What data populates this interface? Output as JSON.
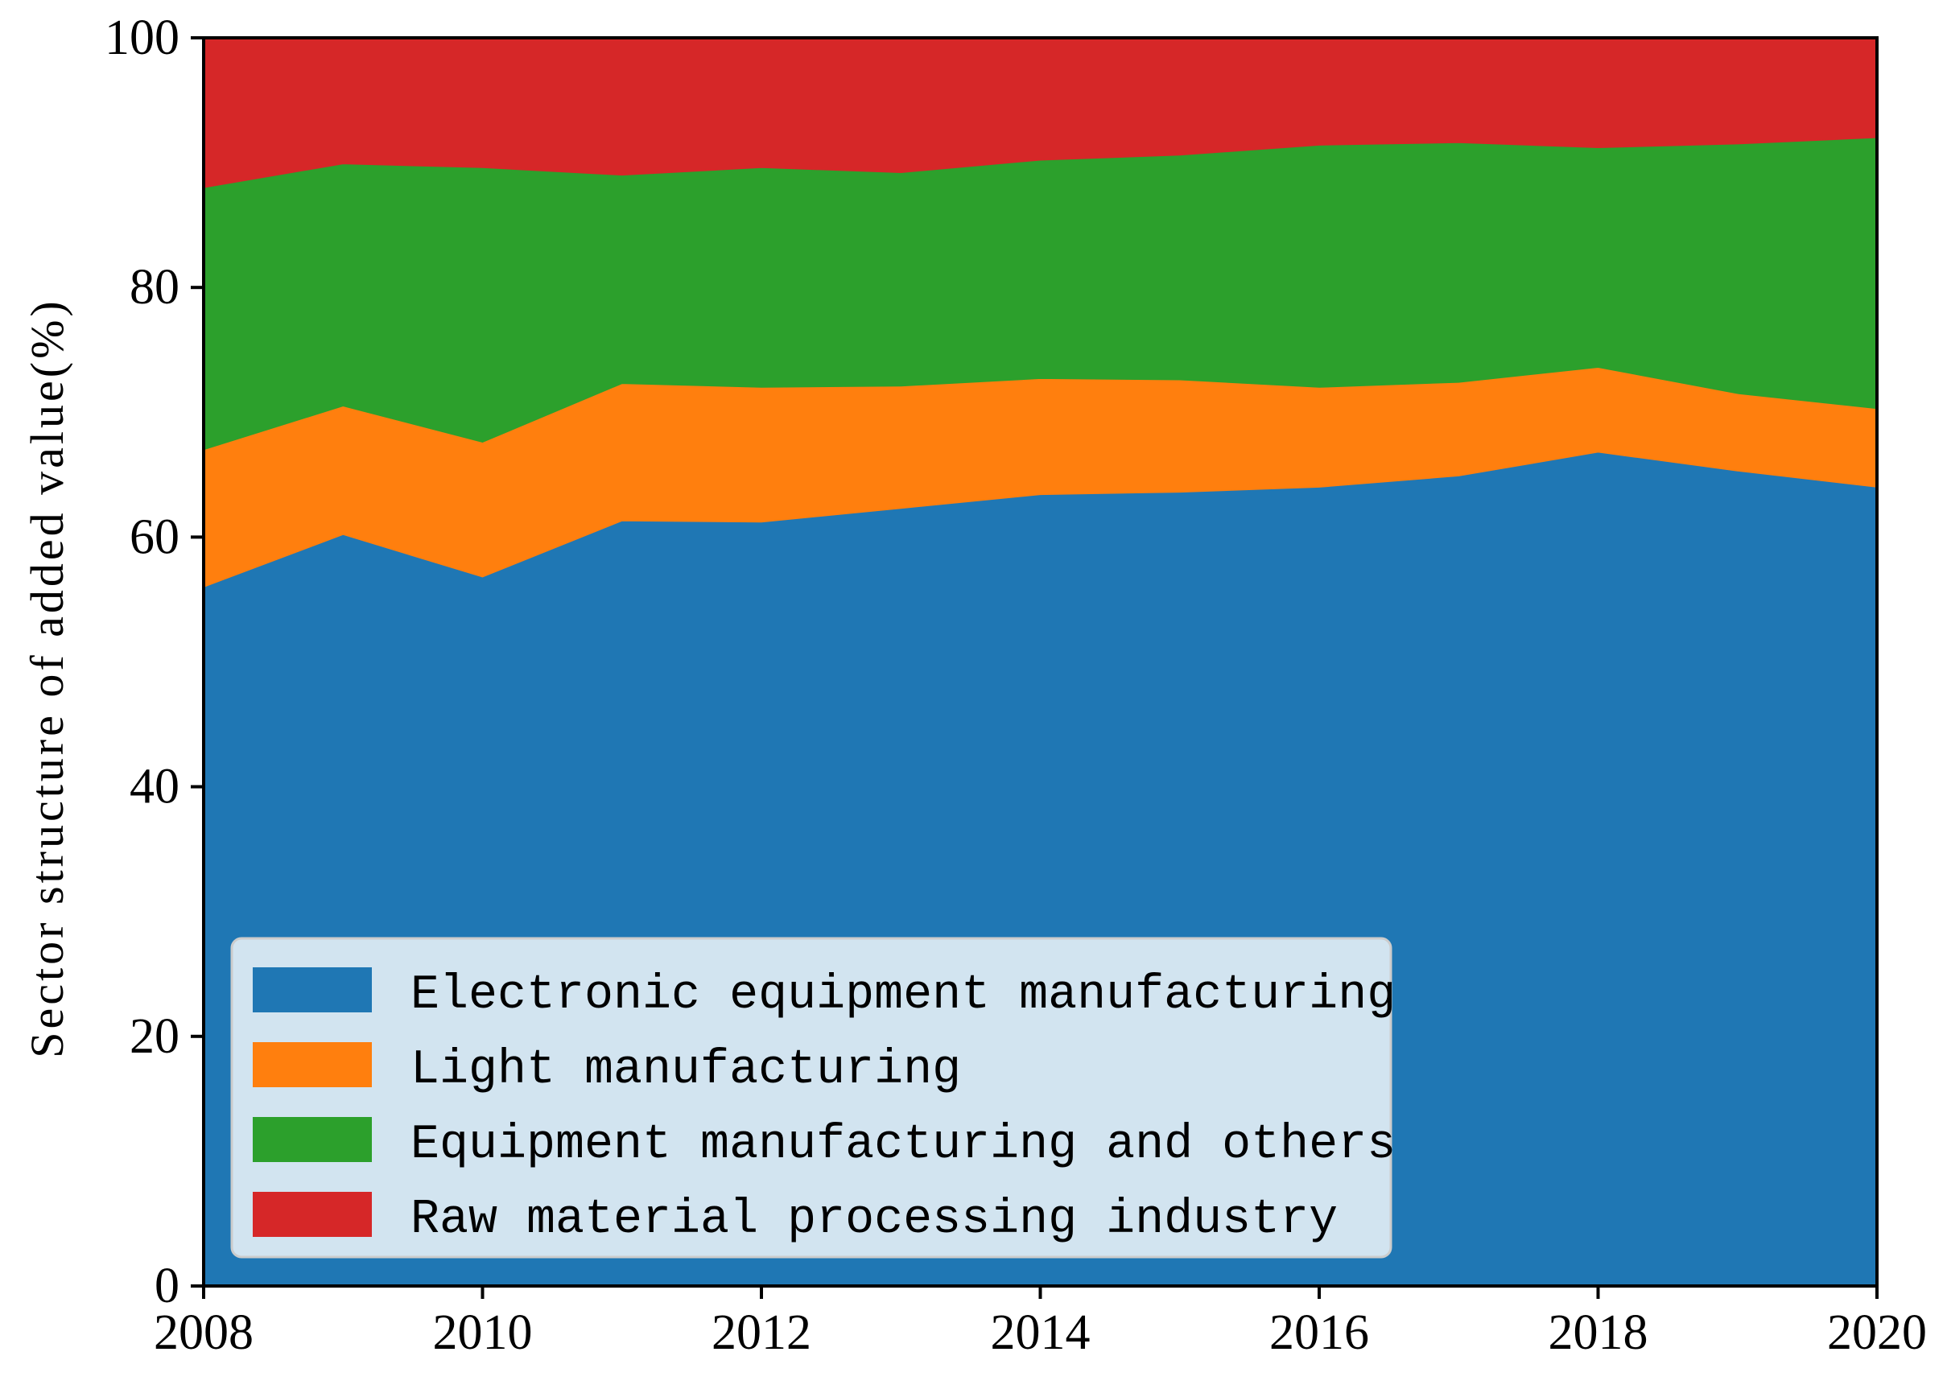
{
  "chart_data": {
    "type": "area",
    "stacked": true,
    "x": [
      2008,
      2009,
      2010,
      2011,
      2012,
      2013,
      2014,
      2015,
      2016,
      2017,
      2018,
      2019,
      2020
    ],
    "series": [
      {
        "name": "Electronic equipment manufacturing",
        "color": "#1f77b4",
        "values": [
          56.0,
          60.2,
          56.8,
          61.3,
          61.2,
          62.3,
          63.4,
          63.6,
          64.0,
          64.9,
          66.8,
          65.3,
          64.0
        ]
      },
      {
        "name": "Light manufacturing",
        "color": "#ff7f0e",
        "values": [
          11.0,
          10.3,
          10.8,
          11.0,
          10.8,
          9.8,
          9.3,
          9.0,
          8.0,
          7.5,
          6.8,
          6.2,
          6.3
        ]
      },
      {
        "name": "Equipment manufacturing and others",
        "color": "#2ca02c",
        "values": [
          21.0,
          19.4,
          22.0,
          16.7,
          17.6,
          17.1,
          17.5,
          18.0,
          19.4,
          19.2,
          17.6,
          20.0,
          21.7
        ]
      },
      {
        "name": "Raw material processing industry",
        "color": "#d62728",
        "values": [
          12.0,
          10.1,
          10.4,
          11.0,
          10.4,
          10.8,
          9.8,
          9.4,
          8.6,
          8.4,
          8.8,
          8.5,
          8.0
        ]
      }
    ],
    "xlabel": "",
    "ylabel": "Sector structure of added value(%)",
    "xlim": [
      2008,
      2020
    ],
    "ylim": [
      0,
      100
    ],
    "xticks": [
      "2008",
      "2010",
      "2012",
      "2014",
      "2016",
      "2018",
      "2020"
    ],
    "yticks": [
      "0",
      "20",
      "40",
      "60",
      "80",
      "100"
    ],
    "grid": false,
    "legend": "lower-left"
  }
}
